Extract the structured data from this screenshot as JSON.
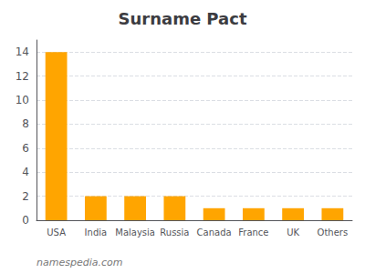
{
  "chart_data": {
    "type": "bar",
    "title": "Surname Pact",
    "categories": [
      "USA",
      "India",
      "Malaysia",
      "Russia",
      "Canada",
      "France",
      "UK",
      "Others"
    ],
    "values": [
      14,
      2,
      2,
      2,
      1,
      1,
      1,
      1
    ],
    "color": "#FFA500",
    "ylim": [
      0,
      15
    ],
    "yticks": [
      0,
      2,
      4,
      6,
      8,
      10,
      12,
      14
    ],
    "grid": true,
    "annotations": [
      "namespedia.com"
    ]
  }
}
